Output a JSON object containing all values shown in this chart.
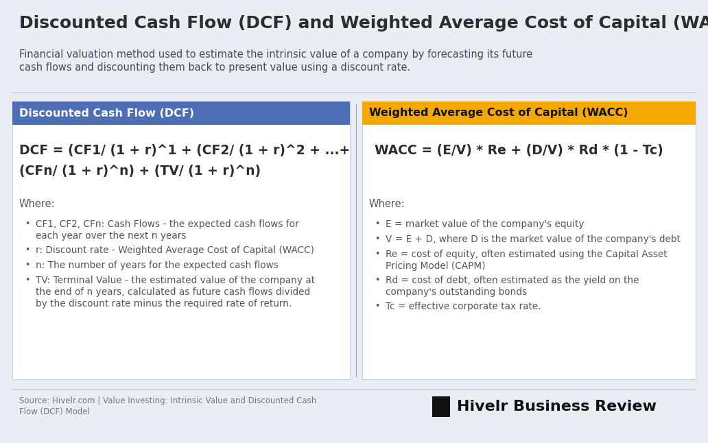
{
  "bg_color": "#e8eef4",
  "title": "Discounted Cash Flow (DCF) and Weighted Average Cost of Capital (WACC)",
  "subtitle_line1": "Financial valuation method used to estimate the intrinsic value of a company by forecasting its future",
  "subtitle_line2": "cash flows and discounting them back to present value using a discount rate.",
  "title_color": "#2d2d2d",
  "subtitle_color": "#4a4a4a",
  "left_header": "Discounted Cash Flow (DCF)",
  "left_header_bg": "#4d6db5",
  "left_header_color": "#ffffff",
  "left_formula_line1": "DCF = (CF1/ (1 + r)^1 + (CF2/ (1 + r)^2 + ...+",
  "left_formula_line2": "(CFn/ (1 + r)^n) + (TV/ (1 + r)^n)",
  "left_formula_color": "#2d2d2d",
  "right_header": "Weighted Average Cost of Capital (WACC)",
  "right_header_bg": "#f5a800",
  "right_header_color": "#111111",
  "right_formula": "  WACC = (E/V) * Re + (D/V) * Rd * (1 - Tc)",
  "right_formula_color": "#2d2d2d",
  "panel_bg": "#ffffff",
  "panel_border": "#c8d4e0",
  "divider_color": "#b0bcc8",
  "center_divider_color": "#9aaaba",
  "source_text_line1": "Source: Hivelr.com | Value Investing: Intrinsic Value and Discounted Cash",
  "source_text_line2": "Flow (DCF) Model",
  "source_color": "#777777",
  "brand_text": "Hivelr Business Review",
  "brand_color": "#111111",
  "brand_square_color": "#111111",
  "where_color": "#555555",
  "bullet_color": "#555555"
}
